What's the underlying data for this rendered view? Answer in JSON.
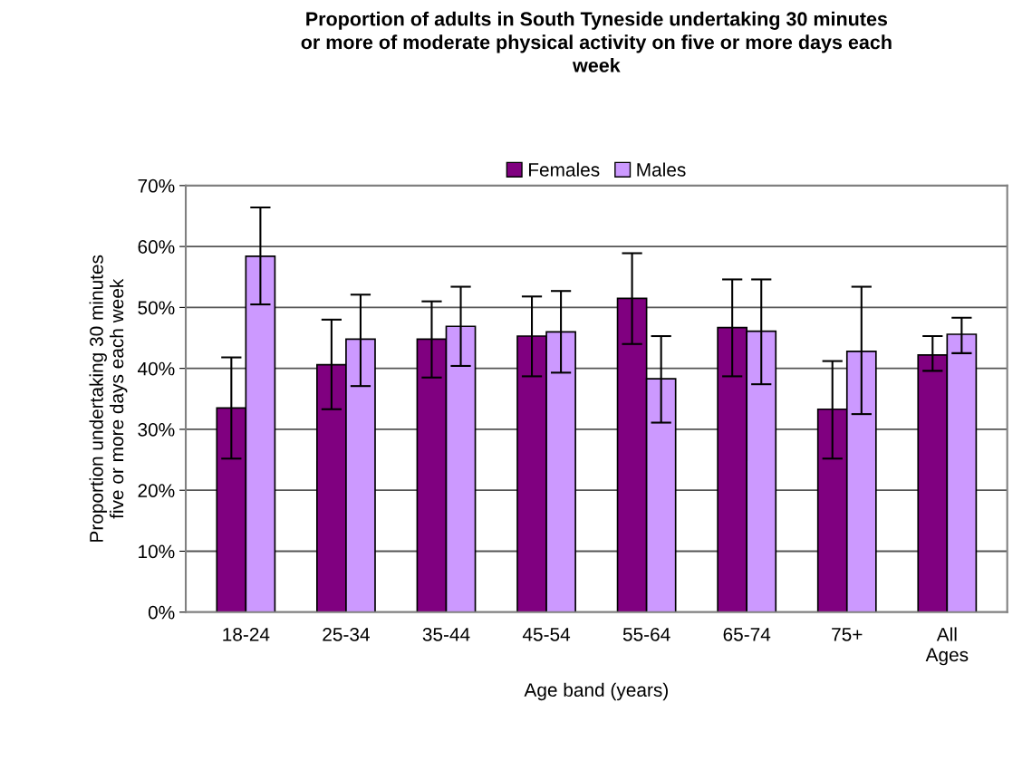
{
  "chart_data": {
    "type": "bar",
    "title": "Proportion of adults in South Tyneside undertaking 30 minutes\nor more of moderate physical activity on five or more days each\nweek",
    "xlabel": "Age band (years)",
    "ylabel": "Proportion undertaking 30 minutes\nfive or more days each week",
    "categories": [
      "18-24",
      "25-34",
      "35-44",
      "45-54",
      "55-64",
      "65-74",
      "75+",
      "All\nAges"
    ],
    "series": [
      {
        "name": "Females",
        "color": "#800080",
        "values": [
          33.5,
          40.6,
          44.8,
          45.3,
          51.5,
          46.7,
          33.3,
          42.2
        ],
        "errors": [
          [
            25.2,
            41.8
          ],
          [
            33.3,
            48.0
          ],
          [
            38.5,
            51.0
          ],
          [
            38.7,
            51.8
          ],
          [
            44.0,
            58.9
          ],
          [
            38.7,
            54.6
          ],
          [
            25.2,
            41.2
          ],
          [
            39.6,
            45.3
          ]
        ]
      },
      {
        "name": "Males",
        "color": "#cc99ff",
        "values": [
          58.4,
          44.8,
          46.9,
          46.0,
          38.3,
          46.1,
          42.8,
          45.6
        ],
        "errors": [
          [
            50.5,
            66.4
          ],
          [
            37.1,
            52.1
          ],
          [
            40.4,
            53.4
          ],
          [
            39.3,
            52.7
          ],
          [
            31.1,
            45.3
          ],
          [
            37.4,
            54.6
          ],
          [
            32.5,
            53.4
          ],
          [
            42.5,
            48.3
          ]
        ]
      }
    ],
    "ylim": [
      0,
      70
    ],
    "yticks": [
      {
        "value": 0,
        "label": "0%"
      },
      {
        "value": 10,
        "label": "10%"
      },
      {
        "value": 20,
        "label": "20%"
      },
      {
        "value": 30,
        "label": "30%"
      },
      {
        "value": 40,
        "label": "40%"
      },
      {
        "value": 50,
        "label": "50%"
      },
      {
        "value": 60,
        "label": "60%"
      },
      {
        "value": 70,
        "label": "70%"
      }
    ],
    "grid": "y",
    "legend": "top"
  }
}
